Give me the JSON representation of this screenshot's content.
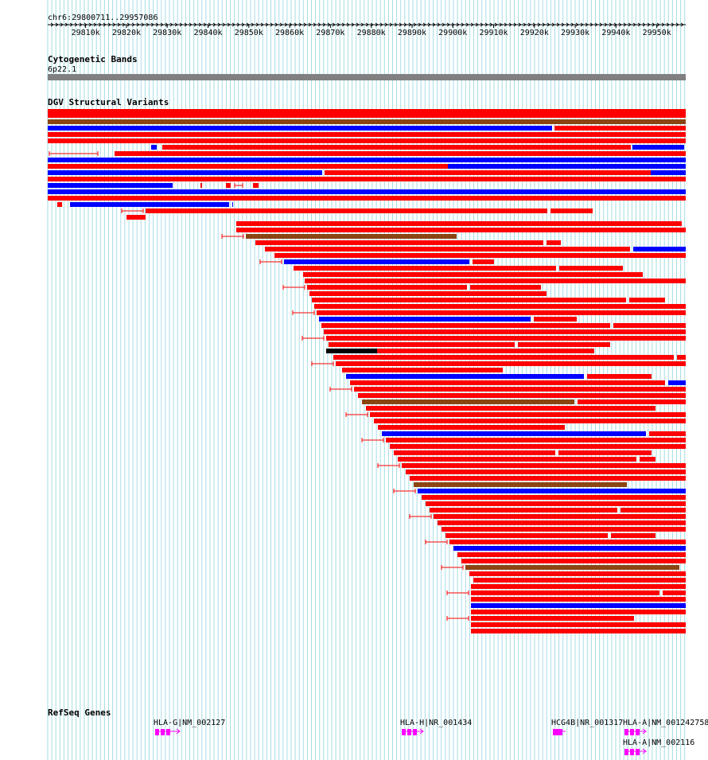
{
  "location": "chr6:29800711..29957086",
  "ruler": {
    "start": 29800711,
    "end": 29957086,
    "ticks": [
      "29810k",
      "29820k",
      "29830k",
      "29840k",
      "29850k",
      "29860k",
      "29870k",
      "29880k",
      "29890k",
      "29900k",
      "29910k",
      "29920k",
      "29930k",
      "29940k",
      "29950k"
    ]
  },
  "tracks": {
    "cytoband": {
      "title": "Cytogenetic Bands",
      "band": "6p22.1"
    },
    "dgv": {
      "title": "DGV Structural Variants"
    },
    "refseq": {
      "title": "RefSeq Genes",
      "genes": [
        {
          "label": "HLA-G|NM_002127"
        },
        {
          "label": "HLA-H|NR_001434"
        },
        {
          "label": "HCG4B|NR_001317"
        },
        {
          "label": "HLA-A|NM_001242758"
        },
        {
          "label": "HLA-A|NM_002116"
        }
      ]
    }
  },
  "colors": {
    "loss": "#ff0000",
    "gain": "#0000ff",
    "gain_loss": "#8b4513",
    "complex": "#000000",
    "gene": "#ff00ff",
    "grid": "#a6dde6",
    "band": "#808080"
  }
}
